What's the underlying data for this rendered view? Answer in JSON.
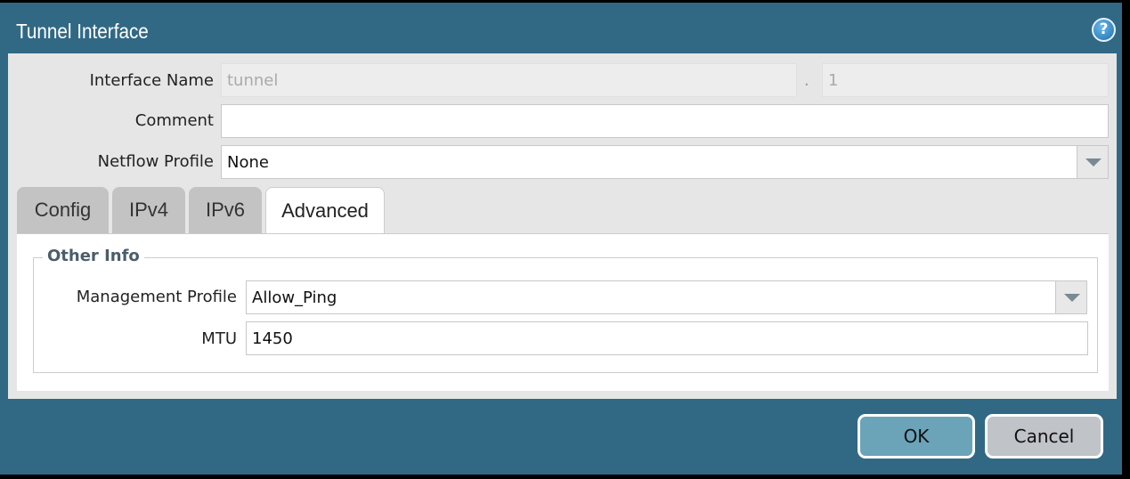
{
  "dialog": {
    "title": "Tunnel Interface",
    "help_icon": "help-icon"
  },
  "fields": {
    "interface_name": {
      "label": "Interface Name",
      "value": "tunnel",
      "separator": ".",
      "suffix": "1"
    },
    "comment": {
      "label": "Comment",
      "value": ""
    },
    "netflow_profile": {
      "label": "Netflow Profile",
      "value": "None"
    }
  },
  "tabs": [
    {
      "label": "Config"
    },
    {
      "label": "IPv4"
    },
    {
      "label": "IPv6"
    },
    {
      "label": "Advanced",
      "active": true
    }
  ],
  "other_info": {
    "legend": "Other Info",
    "management_profile": {
      "label": "Management Profile",
      "value": "Allow_Ping"
    },
    "mtu": {
      "label": "MTU",
      "value": "1450"
    }
  },
  "buttons": {
    "ok": "OK",
    "cancel": "Cancel"
  },
  "colors": {
    "header": "#316985",
    "ok": "#6ba3b9",
    "cancel": "#c0c3c7"
  }
}
